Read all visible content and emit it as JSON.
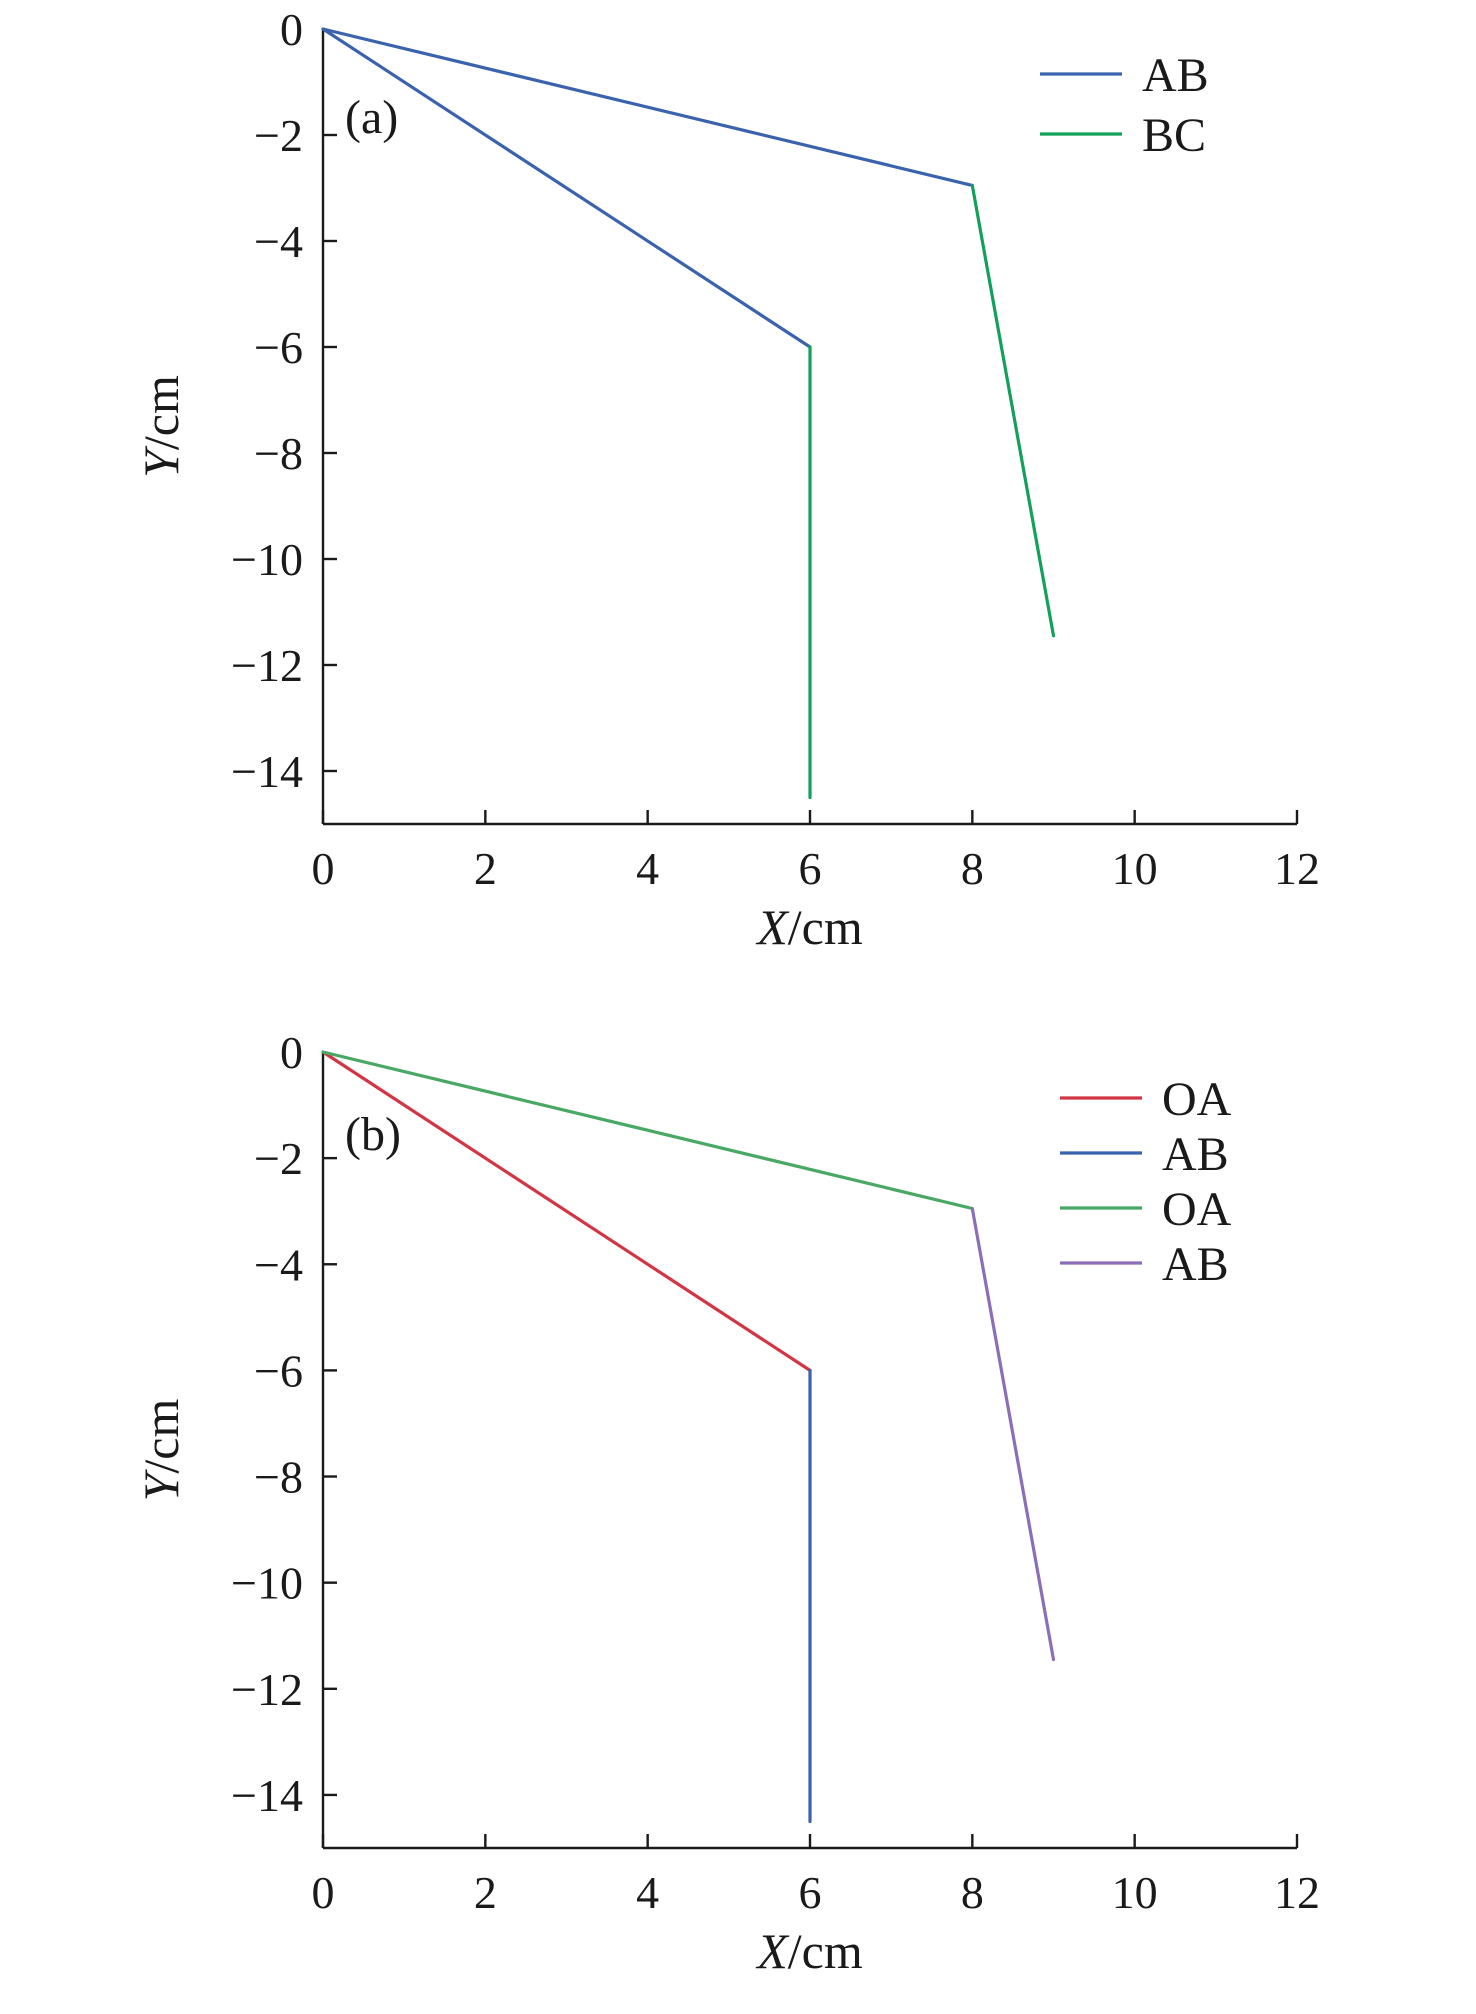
{
  "chart_data": [
    {
      "type": "line",
      "panel_label": "(a)",
      "xlabel_var": "X",
      "xlabel_unit": "/cm",
      "ylabel_var": "Y",
      "ylabel_unit": "/cm",
      "xlim": [
        0,
        12
      ],
      "ylim": [
        -15,
        0
      ],
      "xticks": [
        0,
        2,
        4,
        6,
        8,
        10,
        12
      ],
      "yticks": [
        0,
        -2,
        -4,
        -6,
        -8,
        -10,
        -12,
        -14
      ],
      "grid": false,
      "legend_position": "top-right",
      "series": [
        {
          "name": "AB",
          "color": "#3b62ad",
          "points": [
            [
              0,
              0
            ],
            [
              8,
              -2.95
            ]
          ]
        },
        {
          "name": "BC",
          "color": "#12a05a",
          "points": [
            [
              8,
              -2.95
            ],
            [
              9,
              -11.45
            ]
          ]
        },
        {
          "name": "",
          "color": "#3b62ad",
          "points": [
            [
              0,
              0
            ],
            [
              6,
              -6
            ]
          ]
        },
        {
          "name": "",
          "color": "#12a05a",
          "points": [
            [
              6,
              -6
            ],
            [
              6,
              -14.5
            ]
          ]
        }
      ],
      "legend": [
        {
          "label": "AB",
          "color": "#3b62ad"
        },
        {
          "label": "BC",
          "color": "#12a05a"
        }
      ]
    },
    {
      "type": "line",
      "panel_label": "(b)",
      "xlabel_var": "X",
      "xlabel_unit": "/cm",
      "ylabel_var": "Y",
      "ylabel_unit": "/cm",
      "xlim": [
        0,
        12
      ],
      "ylim": [
        -15,
        0
      ],
      "xticks": [
        0,
        2,
        4,
        6,
        8,
        10,
        12
      ],
      "yticks": [
        0,
        -2,
        -4,
        -6,
        -8,
        -10,
        -12,
        -14
      ],
      "grid": false,
      "legend_position": "top-right",
      "series": [
        {
          "name": "OA",
          "color": "#d23645",
          "points": [
            [
              0,
              0
            ],
            [
              6,
              -6
            ]
          ]
        },
        {
          "name": "AB",
          "color": "#3b62ad",
          "points": [
            [
              6,
              -6
            ],
            [
              6,
              -14.5
            ]
          ]
        },
        {
          "name": "OA",
          "color": "#48a864",
          "points": [
            [
              0,
              0
            ],
            [
              8,
              -2.95
            ]
          ]
        },
        {
          "name": "AB",
          "color": "#8a6fb8",
          "points": [
            [
              8,
              -2.95
            ],
            [
              9,
              -11.45
            ]
          ]
        }
      ],
      "legend": [
        {
          "label": "OA",
          "color": "#d23645"
        },
        {
          "label": "AB",
          "color": "#3b62ad"
        },
        {
          "label": "OA",
          "color": "#48a864"
        },
        {
          "label": "AB",
          "color": "#8a6fb8"
        }
      ]
    }
  ]
}
